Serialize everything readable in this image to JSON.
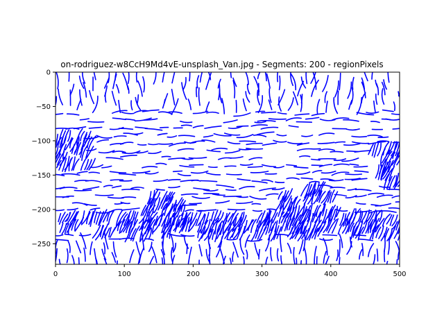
{
  "chart_data": {
    "type": "line",
    "title": "on-rodriguez-w8CcH9Md4vE-unsplash_Van.jpg - Segments: 200 - regionPixels",
    "xlabel": "",
    "ylabel": "",
    "xlim": [
      0,
      500
    ],
    "ylim": [
      -280,
      0
    ],
    "x_ticks": [
      0,
      100,
      200,
      300,
      400,
      500
    ],
    "y_ticks": [
      0,
      -50,
      -100,
      -150,
      -200,
      -250
    ],
    "x_tick_labels": [
      "0",
      "100",
      "200",
      "300",
      "400",
      "500"
    ],
    "y_tick_labels": [
      "0",
      "−50",
      "−100",
      "−150",
      "−200",
      "−250"
    ],
    "grid": false,
    "series_color": "#0000ff",
    "stroke_count": 200
  }
}
